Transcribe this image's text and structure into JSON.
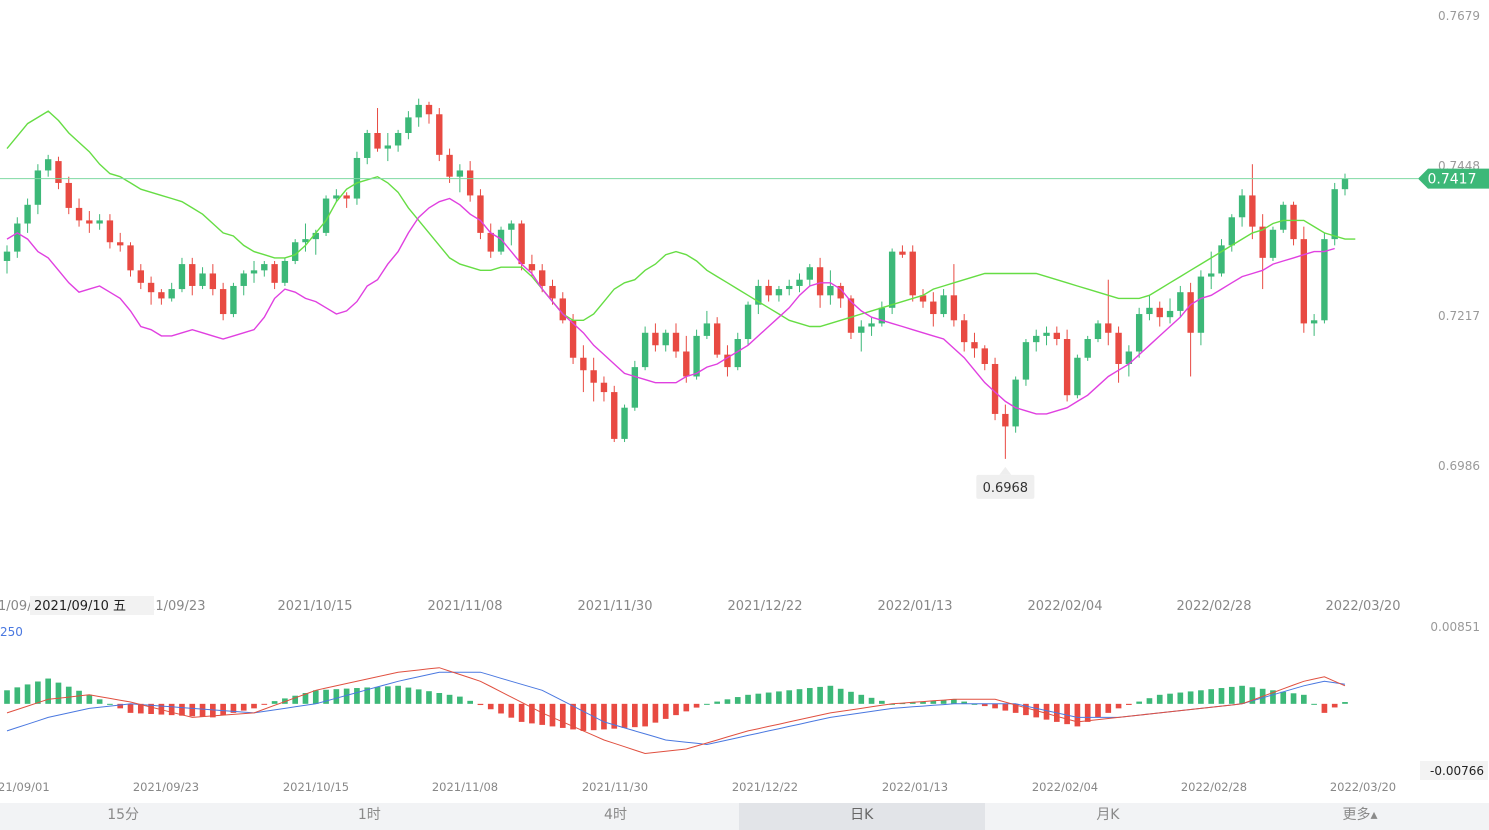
{
  "chart_data": {
    "type": "candlestick",
    "title": "",
    "price_axis": {
      "ylim": [
        0.6955,
        0.7679
      ],
      "ticks": [
        "0.7679",
        "0.7448",
        "0.7217",
        "0.6986"
      ]
    },
    "current_price": {
      "value": 0.7417,
      "label": "0.7417"
    },
    "low_marker": {
      "value": 0.6968,
      "label": "0.6968"
    },
    "date_labels": [
      "2021/09/23",
      "2021/10/15",
      "2021/11/08",
      "2021/11/30",
      "2021/12/22",
      "2022/01/13",
      "2022/02/04",
      "2022/02/28",
      "2022/03/20"
    ],
    "left_partial_label": "1/09/",
    "crosshair_label": "2021/09/10 五",
    "up_color": "#3cb878",
    "down_color": "#e84a42",
    "ma_fast_color": "#e040e0",
    "ma_slow_color": "#66dd44",
    "candles": [
      [
        0.7285,
        0.731,
        0.7265,
        0.73
      ],
      [
        0.73,
        0.7355,
        0.729,
        0.7345
      ],
      [
        0.7345,
        0.7385,
        0.733,
        0.7375
      ],
      [
        0.7375,
        0.744,
        0.736,
        0.743
      ],
      [
        0.743,
        0.7455,
        0.742,
        0.7448
      ],
      [
        0.7445,
        0.7452,
        0.74,
        0.741
      ],
      [
        0.741,
        0.742,
        0.736,
        0.737
      ],
      [
        0.737,
        0.7385,
        0.734,
        0.735
      ],
      [
        0.735,
        0.7365,
        0.733,
        0.7345
      ],
      [
        0.7345,
        0.736,
        0.7335,
        0.735
      ],
      [
        0.735,
        0.736,
        0.7305,
        0.7315
      ],
      [
        0.7315,
        0.733,
        0.73,
        0.731
      ],
      [
        0.731,
        0.7315,
        0.726,
        0.727
      ],
      [
        0.727,
        0.728,
        0.724,
        0.725
      ],
      [
        0.725,
        0.726,
        0.7215,
        0.7235
      ],
      [
        0.7235,
        0.724,
        0.7215,
        0.7225
      ],
      [
        0.7225,
        0.725,
        0.722,
        0.724
      ],
      [
        0.724,
        0.729,
        0.7235,
        0.728
      ],
      [
        0.728,
        0.729,
        0.723,
        0.7245
      ],
      [
        0.7245,
        0.7275,
        0.724,
        0.7265
      ],
      [
        0.7265,
        0.728,
        0.723,
        0.724
      ],
      [
        0.724,
        0.725,
        0.719,
        0.72
      ],
      [
        0.72,
        0.725,
        0.7195,
        0.7245
      ],
      [
        0.7245,
        0.727,
        0.723,
        0.7265
      ],
      [
        0.7265,
        0.7285,
        0.725,
        0.727
      ],
      [
        0.727,
        0.7285,
        0.726,
        0.728
      ],
      [
        0.728,
        0.7285,
        0.724,
        0.725
      ],
      [
        0.725,
        0.729,
        0.7245,
        0.7285
      ],
      [
        0.7285,
        0.732,
        0.728,
        0.7315
      ],
      [
        0.7315,
        0.7345,
        0.73,
        0.732
      ],
      [
        0.732,
        0.7335,
        0.7295,
        0.733
      ],
      [
        0.733,
        0.739,
        0.7325,
        0.7385
      ],
      [
        0.7385,
        0.74,
        0.738,
        0.739
      ],
      [
        0.739,
        0.7395,
        0.737,
        0.7385
      ],
      [
        0.7385,
        0.746,
        0.7375,
        0.745
      ],
      [
        0.745,
        0.7495,
        0.744,
        0.749
      ],
      [
        0.749,
        0.753,
        0.746,
        0.7465
      ],
      [
        0.7465,
        0.749,
        0.7445,
        0.747
      ],
      [
        0.747,
        0.7495,
        0.746,
        0.749
      ],
      [
        0.749,
        0.7525,
        0.748,
        0.7515
      ],
      [
        0.7515,
        0.7545,
        0.75,
        0.7535
      ],
      [
        0.7535,
        0.754,
        0.7505,
        0.752
      ],
      [
        0.752,
        0.753,
        0.7445,
        0.7455
      ],
      [
        0.7455,
        0.7465,
        0.741,
        0.742
      ],
      [
        0.742,
        0.744,
        0.7395,
        0.743
      ],
      [
        0.743,
        0.7445,
        0.738,
        0.739
      ],
      [
        0.739,
        0.74,
        0.732,
        0.733
      ],
      [
        0.733,
        0.7345,
        0.729,
        0.73
      ],
      [
        0.73,
        0.734,
        0.7295,
        0.7335
      ],
      [
        0.7335,
        0.735,
        0.731,
        0.7345
      ],
      [
        0.7345,
        0.735,
        0.727,
        0.728
      ],
      [
        0.728,
        0.7295,
        0.726,
        0.727
      ],
      [
        0.727,
        0.728,
        0.7235,
        0.7245
      ],
      [
        0.7245,
        0.7255,
        0.7215,
        0.7225
      ],
      [
        0.7225,
        0.7235,
        0.7185,
        0.719
      ],
      [
        0.719,
        0.72,
        0.712,
        0.713
      ],
      [
        0.713,
        0.715,
        0.7075,
        0.711
      ],
      [
        0.711,
        0.713,
        0.706,
        0.709
      ],
      [
        0.709,
        0.71,
        0.706,
        0.7075
      ],
      [
        0.7075,
        0.7085,
        0.6995,
        0.7
      ],
      [
        0.7,
        0.7055,
        0.6995,
        0.705
      ],
      [
        0.705,
        0.7125,
        0.7045,
        0.7115
      ],
      [
        0.7115,
        0.718,
        0.711,
        0.717
      ],
      [
        0.717,
        0.7185,
        0.714,
        0.715
      ],
      [
        0.715,
        0.7175,
        0.714,
        0.717
      ],
      [
        0.717,
        0.7185,
        0.713,
        0.714
      ],
      [
        0.714,
        0.7165,
        0.709,
        0.71
      ],
      [
        0.71,
        0.7175,
        0.7095,
        0.7165
      ],
      [
        0.7165,
        0.7205,
        0.716,
        0.7185
      ],
      [
        0.7185,
        0.7195,
        0.713,
        0.7135
      ],
      [
        0.7135,
        0.715,
        0.71,
        0.7115
      ],
      [
        0.7115,
        0.717,
        0.711,
        0.716
      ],
      [
        0.716,
        0.722,
        0.715,
        0.7215
      ],
      [
        0.7215,
        0.7255,
        0.72,
        0.7245
      ],
      [
        0.7245,
        0.7255,
        0.722,
        0.723
      ],
      [
        0.723,
        0.7245,
        0.722,
        0.724
      ],
      [
        0.724,
        0.7255,
        0.723,
        0.7245
      ],
      [
        0.7245,
        0.7265,
        0.7235,
        0.7255
      ],
      [
        0.7255,
        0.728,
        0.7245,
        0.7275
      ],
      [
        0.7275,
        0.729,
        0.721,
        0.723
      ],
      [
        0.723,
        0.727,
        0.7215,
        0.7245
      ],
      [
        0.7245,
        0.725,
        0.721,
        0.7225
      ],
      [
        0.7225,
        0.723,
        0.716,
        0.717
      ],
      [
        0.717,
        0.719,
        0.714,
        0.718
      ],
      [
        0.718,
        0.7195,
        0.7165,
        0.7185
      ],
      [
        0.7185,
        0.722,
        0.718,
        0.721
      ],
      [
        0.721,
        0.7305,
        0.72,
        0.73
      ],
      [
        0.73,
        0.731,
        0.729,
        0.7295
      ],
      [
        0.73,
        0.731,
        0.722,
        0.723
      ],
      [
        0.723,
        0.724,
        0.721,
        0.722
      ],
      [
        0.722,
        0.7235,
        0.718,
        0.72
      ],
      [
        0.72,
        0.724,
        0.7195,
        0.723
      ],
      [
        0.723,
        0.728,
        0.718,
        0.719
      ],
      [
        0.719,
        0.72,
        0.714,
        0.7155
      ],
      [
        0.7155,
        0.717,
        0.713,
        0.7145
      ],
      [
        0.7145,
        0.715,
        0.711,
        0.712
      ],
      [
        0.712,
        0.713,
        0.703,
        0.704
      ],
      [
        0.704,
        0.7055,
        0.6968,
        0.702
      ],
      [
        0.702,
        0.71,
        0.701,
        0.7095
      ],
      [
        0.7095,
        0.716,
        0.7085,
        0.7155
      ],
      [
        0.7155,
        0.7175,
        0.714,
        0.7165
      ],
      [
        0.7165,
        0.718,
        0.715,
        0.717
      ],
      [
        0.717,
        0.718,
        0.715,
        0.716
      ],
      [
        0.716,
        0.7175,
        0.706,
        0.707
      ],
      [
        0.707,
        0.7135,
        0.7065,
        0.713
      ],
      [
        0.713,
        0.7165,
        0.7125,
        0.716
      ],
      [
        0.716,
        0.719,
        0.7155,
        0.7185
      ],
      [
        0.7185,
        0.7255,
        0.715,
        0.717
      ],
      [
        0.717,
        0.718,
        0.709,
        0.712
      ],
      [
        0.712,
        0.715,
        0.71,
        0.714
      ],
      [
        0.714,
        0.721,
        0.713,
        0.72
      ],
      [
        0.72,
        0.723,
        0.719,
        0.721
      ],
      [
        0.721,
        0.722,
        0.718,
        0.7195
      ],
      [
        0.7195,
        0.7225,
        0.7185,
        0.7205
      ],
      [
        0.7205,
        0.7245,
        0.7195,
        0.7235
      ],
      [
        0.7235,
        0.725,
        0.71,
        0.717
      ],
      [
        0.717,
        0.727,
        0.715,
        0.726
      ],
      [
        0.726,
        0.73,
        0.724,
        0.7265
      ],
      [
        0.7265,
        0.732,
        0.726,
        0.731
      ],
      [
        0.731,
        0.736,
        0.73,
        0.7355
      ],
      [
        0.7355,
        0.74,
        0.734,
        0.739
      ],
      [
        0.739,
        0.744,
        0.732,
        0.734
      ],
      [
        0.734,
        0.736,
        0.724,
        0.729
      ],
      [
        0.729,
        0.734,
        0.7285,
        0.7335
      ],
      [
        0.7335,
        0.738,
        0.733,
        0.7375
      ],
      [
        0.7375,
        0.738,
        0.731,
        0.732
      ],
      [
        0.732,
        0.734,
        0.717,
        0.7185
      ],
      [
        0.7185,
        0.72,
        0.7165,
        0.719
      ],
      [
        0.719,
        0.733,
        0.7185,
        0.732
      ],
      [
        0.732,
        0.741,
        0.731,
        0.74
      ],
      [
        0.74,
        0.7425,
        0.739,
        0.7417
      ]
    ],
    "ma_fast": [
      0.732,
      0.733,
      0.732,
      0.73,
      0.729,
      0.727,
      0.725,
      0.7235,
      0.724,
      0.7245,
      0.7235,
      0.7225,
      0.7205,
      0.718,
      0.7175,
      0.7165,
      0.7165,
      0.717,
      0.7175,
      0.717,
      0.7165,
      0.716,
      0.7165,
      0.717,
      0.7175,
      0.7195,
      0.7225,
      0.724,
      0.7235,
      0.7225,
      0.722,
      0.721,
      0.72,
      0.7205,
      0.722,
      0.7245,
      0.7255,
      0.728,
      0.73,
      0.733,
      0.7355,
      0.737,
      0.738,
      0.7385,
      0.7375,
      0.736,
      0.735,
      0.733,
      0.732,
      0.73,
      0.728,
      0.7265,
      0.724,
      0.722,
      0.72,
      0.7185,
      0.717,
      0.715,
      0.7135,
      0.712,
      0.7105,
      0.71,
      0.7095,
      0.709,
      0.709,
      0.709,
      0.71,
      0.7105,
      0.7115,
      0.712,
      0.713,
      0.714,
      0.715,
      0.7165,
      0.718,
      0.7195,
      0.721,
      0.723,
      0.7245,
      0.725,
      0.725,
      0.724,
      0.722,
      0.7205,
      0.7195,
      0.719,
      0.7185,
      0.718,
      0.7175,
      0.717,
      0.7165,
      0.716,
      0.7145,
      0.713,
      0.711,
      0.709,
      0.7075,
      0.706,
      0.705,
      0.7045,
      0.704,
      0.704,
      0.7045,
      0.705,
      0.706,
      0.707,
      0.7085,
      0.71,
      0.711,
      0.712,
      0.7135,
      0.715,
      0.7165,
      0.718,
      0.7195,
      0.7215,
      0.7225,
      0.723,
      0.724,
      0.725,
      0.726,
      0.7265,
      0.727,
      0.728,
      0.7285,
      0.729,
      0.7295,
      0.73,
      0.73,
      0.7305
    ],
    "ma_slow": [
      0.7465,
      0.7485,
      0.7505,
      0.7515,
      0.7525,
      0.751,
      0.749,
      0.7475,
      0.746,
      0.744,
      0.7425,
      0.742,
      0.741,
      0.74,
      0.7395,
      0.739,
      0.7385,
      0.738,
      0.737,
      0.736,
      0.7345,
      0.733,
      0.7325,
      0.731,
      0.73,
      0.7295,
      0.729,
      0.729,
      0.7295,
      0.731,
      0.733,
      0.735,
      0.738,
      0.74,
      0.741,
      0.7415,
      0.742,
      0.741,
      0.7395,
      0.737,
      0.735,
      0.733,
      0.731,
      0.729,
      0.728,
      0.7275,
      0.727,
      0.727,
      0.7275,
      0.7275,
      0.7275,
      0.726,
      0.724,
      0.722,
      0.72,
      0.719,
      0.719,
      0.72,
      0.722,
      0.724,
      0.725,
      0.7255,
      0.727,
      0.728,
      0.7295,
      0.73,
      0.7295,
      0.7285,
      0.727,
      0.726,
      0.725,
      0.724,
      0.723,
      0.722,
      0.721,
      0.72,
      0.719,
      0.7185,
      0.718,
      0.718,
      0.7185,
      0.719,
      0.7195,
      0.72,
      0.7205,
      0.721,
      0.7215,
      0.722,
      0.7225,
      0.723,
      0.724,
      0.7245,
      0.725,
      0.7255,
      0.726,
      0.7265,
      0.7265,
      0.7265,
      0.7265,
      0.7265,
      0.7265,
      0.726,
      0.7255,
      0.725,
      0.7245,
      0.724,
      0.7235,
      0.723,
      0.7225,
      0.7225,
      0.7225,
      0.723,
      0.724,
      0.725,
      0.726,
      0.727,
      0.728,
      0.729,
      0.73,
      0.731,
      0.732,
      0.733,
      0.7335,
      0.7345,
      0.735,
      0.735,
      0.735,
      0.734,
      0.733,
      0.7325,
      0.732,
      0.732
    ]
  },
  "macd": {
    "ylim": [
      -0.00766,
      0.00851
    ],
    "top_label": "0.00851",
    "bottom_label": "-0.00766",
    "left_partial_label": "250",
    "date_labels": [
      "21/09/01",
      "2021/09/23",
      "2021/10/15",
      "2021/11/08",
      "2021/11/30",
      "2021/12/22",
      "2022/01/13",
      "2022/02/04",
      "2022/02/28",
      "2022/03/20"
    ],
    "dif_color": "#e05040",
    "dea_color": "#4a78e0",
    "hist_up_color": "#3cb878",
    "hist_down_color": "#e84a42",
    "hist_breaks": [
      [
        0,
        0.0015
      ],
      [
        4,
        0.0028
      ],
      [
        8,
        0.001
      ],
      [
        12,
        -0.001
      ],
      [
        20,
        -0.0015
      ],
      [
        24,
        -0.0005
      ],
      [
        26,
        0.0003
      ],
      [
        30,
        0.0015
      ],
      [
        38,
        0.002
      ],
      [
        44,
        0.0008
      ],
      [
        50,
        -0.002
      ],
      [
        56,
        -0.003
      ],
      [
        62,
        -0.0025
      ],
      [
        68,
        0.0
      ],
      [
        72,
        0.001
      ],
      [
        80,
        0.002
      ],
      [
        86,
        0.0
      ],
      [
        92,
        0.0005
      ],
      [
        98,
        -0.001
      ],
      [
        104,
        -0.0025
      ],
      [
        108,
        -0.0005
      ],
      [
        112,
        0.001
      ],
      [
        120,
        0.002
      ],
      [
        126,
        0.001
      ],
      [
        128,
        -0.001
      ],
      [
        131,
        0.0008
      ]
    ],
    "dif_breaks": [
      [
        0,
        -0.001
      ],
      [
        4,
        0.0005
      ],
      [
        8,
        0.001
      ],
      [
        12,
        0.0002
      ],
      [
        18,
        -0.0015
      ],
      [
        24,
        -0.001
      ],
      [
        30,
        0.0015
      ],
      [
        38,
        0.0035
      ],
      [
        42,
        0.004
      ],
      [
        46,
        0.0025
      ],
      [
        52,
        -0.001
      ],
      [
        58,
        -0.004
      ],
      [
        62,
        -0.0055
      ],
      [
        66,
        -0.005
      ],
      [
        72,
        -0.003
      ],
      [
        80,
        -0.001
      ],
      [
        86,
        0.0
      ],
      [
        92,
        0.0005
      ],
      [
        96,
        0.0005
      ],
      [
        104,
        -0.002
      ],
      [
        108,
        -0.0015
      ],
      [
        112,
        -0.001
      ],
      [
        120,
        0.0
      ],
      [
        126,
        0.0025
      ],
      [
        128,
        0.003
      ],
      [
        131,
        0.0015
      ]
    ],
    "dea_breaks": [
      [
        0,
        -0.003
      ],
      [
        4,
        -0.0015
      ],
      [
        8,
        -0.0005
      ],
      [
        12,
        0.0
      ],
      [
        18,
        -0.0005
      ],
      [
        24,
        -0.001
      ],
      [
        30,
        0.0
      ],
      [
        38,
        0.0025
      ],
      [
        42,
        0.0035
      ],
      [
        46,
        0.0035
      ],
      [
        52,
        0.0015
      ],
      [
        58,
        -0.002
      ],
      [
        64,
        -0.004
      ],
      [
        68,
        -0.0045
      ],
      [
        74,
        -0.003
      ],
      [
        80,
        -0.0015
      ],
      [
        86,
        -0.0005
      ],
      [
        92,
        0.0
      ],
      [
        98,
        0.0
      ],
      [
        104,
        -0.0015
      ],
      [
        108,
        -0.0015
      ],
      [
        112,
        -0.001
      ],
      [
        120,
        0.0
      ],
      [
        126,
        0.002
      ],
      [
        128,
        0.0025
      ],
      [
        131,
        0.002
      ]
    ]
  },
  "period_tabs": [
    "15分",
    "1时",
    "4时",
    "日K",
    "月K"
  ],
  "active_tab": "日K",
  "more_label": "更多▴"
}
